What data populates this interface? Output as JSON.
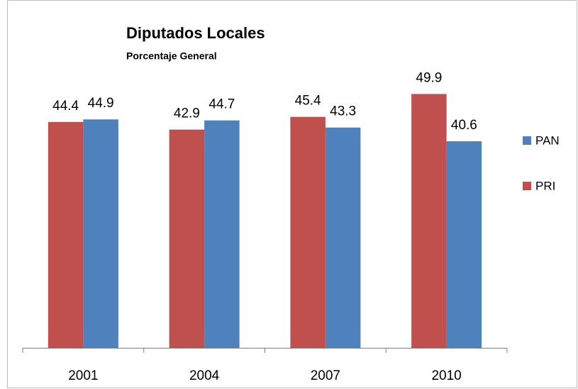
{
  "chart_data": {
    "type": "bar",
    "title": "Diputados Locales",
    "subtitle": "Porcentaje General",
    "categories": [
      "2001",
      "2004",
      "2007",
      "2010"
    ],
    "series": [
      {
        "name": "PAN",
        "color": "#4f81bd",
        "values": [
          44.9,
          44.7,
          43.3,
          40.6
        ]
      },
      {
        "name": "PRI",
        "color": "#c0504d",
        "values": [
          44.4,
          42.9,
          45.4,
          49.9
        ]
      }
    ],
    "ylim": [
      0,
      60
    ],
    "legend": "right"
  }
}
